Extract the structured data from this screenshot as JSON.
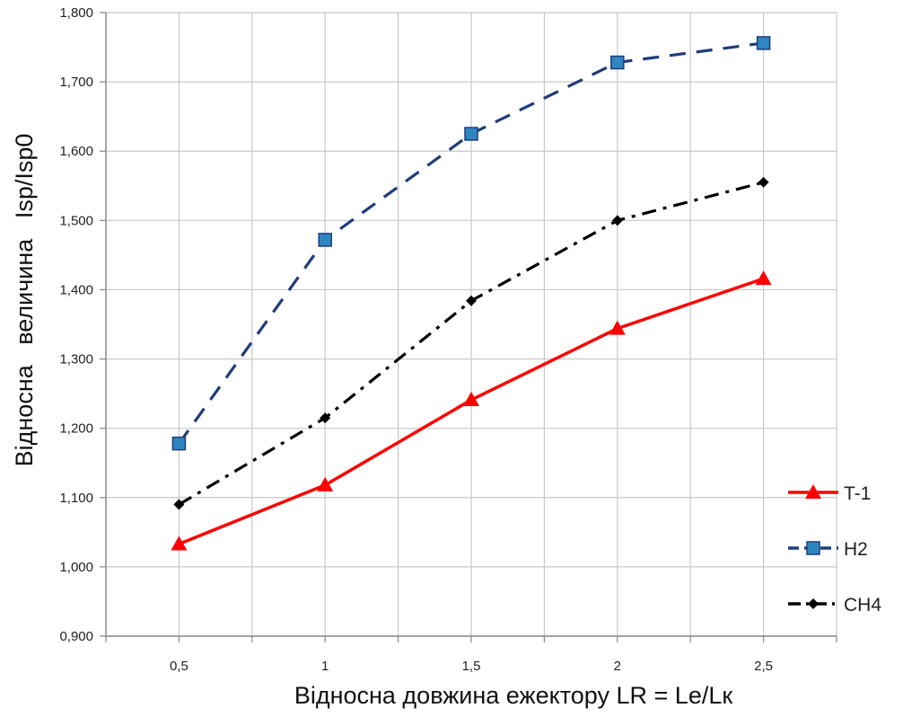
{
  "chart_data": {
    "type": "line",
    "title": "",
    "xlabel": "Відносна довжина ежектору LR = Le/Lк",
    "ylabel": "Відносна   величина   Isp/Isp0",
    "x": [
      0.5,
      1,
      1.5,
      2,
      2.5
    ],
    "x_tick_labels": [
      "0,5",
      "1",
      "1,5",
      "2",
      "2,5"
    ],
    "ylim": [
      0.9,
      1.8
    ],
    "y_tick_labels": [
      "0,900",
      "1,000",
      "1,100",
      "1,200",
      "1,300",
      "1,400",
      "1,500",
      "1,600",
      "1,700",
      "1,800"
    ],
    "grid": true,
    "legend_position": "right",
    "series": [
      {
        "name": "T-1",
        "values": [
          1.033,
          1.118,
          1.241,
          1.344,
          1.416
        ],
        "color": "#ff0000",
        "dash": "solid",
        "marker": "triangle"
      },
      {
        "name": "H2",
        "values": [
          1.178,
          1.472,
          1.625,
          1.728,
          1.756
        ],
        "color": "#1f3d7a",
        "marker_fill": "#2e86c1",
        "dash": "dash",
        "marker": "square"
      },
      {
        "name": "CH4",
        "values": [
          1.09,
          1.215,
          1.384,
          1.5,
          1.555
        ],
        "color": "#000000",
        "dash": "dashdot",
        "marker": "diamond"
      }
    ]
  }
}
